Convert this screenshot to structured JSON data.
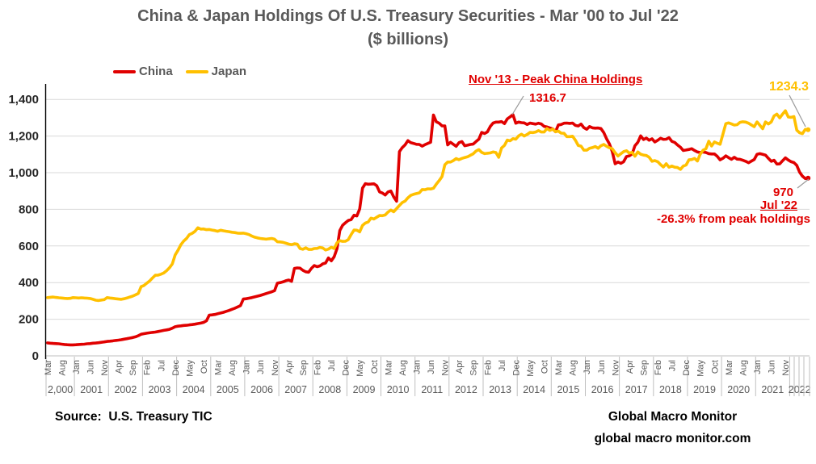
{
  "title": {
    "line1": "China & Japan Holdings Of U.S. Treasury Securities - Mar '00 to Jul '22",
    "line2": "($ billions)"
  },
  "legend": [
    {
      "label": "China",
      "color": "#E00000"
    },
    {
      "label": "Japan",
      "color": "#FFC000"
    }
  ],
  "annotations": {
    "peak_label": "Nov '13 - Peak China Holdings",
    "peak_value": "1316.7",
    "peak_color": "#E00000",
    "japan_end_value": "1234.3",
    "japan_color": "#FFC000",
    "china_end_value": "970",
    "china_end_date": "Jul '22",
    "china_drawdown": "-26.3% from peak holdings",
    "china_color": "#E00000"
  },
  "footer": {
    "source": "Source:  U.S. Treasury TIC",
    "brand_line1": "Global Macro Monitor",
    "brand_line2": "global macro monitor.com"
  },
  "colors": {
    "china_line": "#E00000",
    "japan_line": "#FFC000",
    "grid": "#D9D9D9",
    "baseline": "#BFBFBF",
    "axis": "#000000",
    "tick_text": "#595959",
    "y_text": "#262626",
    "leader": "#999999"
  },
  "chart_data": {
    "type": "line",
    "title": "China & Japan Holdings Of U.S. Treasury Securities - Mar '00 to Jul '22 ($ billions)",
    "x_start": "Mar 2000",
    "x_end": "Jul 2022",
    "grid": "horizontal",
    "legend_position": "top-left",
    "ylim": [
      0,
      1400
    ],
    "y_ticks": {
      "values": [
        0,
        200,
        400,
        600,
        800,
        1000,
        1200,
        1400
      ],
      "labels": [
        "0",
        "200",
        "400",
        "600",
        "800",
        "1,000",
        "1,200",
        "1,400"
      ]
    },
    "x_month_ticks": {
      "interval_months": 5,
      "labels": [
        "Mar",
        "Aug",
        "Jan",
        "Jun",
        "Nov",
        "Apr",
        "Sep",
        "Feb",
        "Jul",
        "Dec",
        "May",
        "Oct",
        "Mar",
        "Aug",
        "Jan",
        "Jun",
        "Nov",
        "Apr",
        "Sep",
        "Feb",
        "Jul",
        "Dec",
        "May",
        "Oct",
        "Mar",
        "Aug",
        "Jan",
        "Jun",
        "Nov",
        "Apr",
        "Sep",
        "Feb",
        "Jul",
        "Dec",
        "May",
        "Oct",
        "Mar",
        "Aug",
        "Jan",
        "Jun",
        "Nov",
        "Apr",
        "Sep",
        "Feb",
        "Jul",
        "Dec",
        "May",
        "Oct",
        "Mar",
        "Aug",
        "Jan",
        "Jun",
        "Nov"
      ]
    },
    "x_year_labels": [
      {
        "label": "2,000",
        "from": 0,
        "to": 9
      },
      {
        "label": "2001",
        "from": 10,
        "to": 21
      },
      {
        "label": "2002",
        "from": 22,
        "to": 33
      },
      {
        "label": "2003",
        "from": 34,
        "to": 45
      },
      {
        "label": "2004",
        "from": 46,
        "to": 57
      },
      {
        "label": "2005",
        "from": 58,
        "to": 69
      },
      {
        "label": "2006",
        "from": 70,
        "to": 81
      },
      {
        "label": "2007",
        "from": 82,
        "to": 93
      },
      {
        "label": "2008",
        "from": 94,
        "to": 105
      },
      {
        "label": "2009",
        "from": 106,
        "to": 117
      },
      {
        "label": "2010",
        "from": 118,
        "to": 129
      },
      {
        "label": "2011",
        "from": 130,
        "to": 141
      },
      {
        "label": "2012",
        "from": 142,
        "to": 153
      },
      {
        "label": "2013",
        "from": 154,
        "to": 165
      },
      {
        "label": "2014",
        "from": 166,
        "to": 177
      },
      {
        "label": "2015",
        "from": 178,
        "to": 189
      },
      {
        "label": "2016",
        "from": 190,
        "to": 201
      },
      {
        "label": "2017",
        "from": 202,
        "to": 213
      },
      {
        "label": "2018",
        "from": 214,
        "to": 225
      },
      {
        "label": "2019",
        "from": 226,
        "to": 237
      },
      {
        "label": "2020",
        "from": 238,
        "to": 249
      },
      {
        "label": "2021",
        "from": 250,
        "to": 261
      },
      {
        "label": "2022",
        "from": 262,
        "to": 268
      }
    ],
    "series": [
      {
        "name": "China",
        "color": "#E00000",
        "values": [
          71,
          69,
          68,
          67,
          66,
          64,
          62,
          61,
          60,
          60,
          61,
          62,
          63,
          64,
          66,
          67,
          69,
          70,
          72,
          74,
          76,
          79,
          80,
          82,
          84,
          86,
          88,
          91,
          94,
          97,
          100,
          104,
          110,
          118,
          121,
          124,
          126,
          128,
          130,
          133,
          136,
          139,
          142,
          145,
          151,
          159,
          162,
          164,
          166,
          167,
          169,
          171,
          173,
          176,
          179,
          183,
          191,
          222,
          224,
          226,
          230,
          234,
          238,
          243,
          248,
          254,
          260,
          267,
          274,
          310,
          312,
          315,
          318,
          322,
          326,
          330,
          335,
          340,
          345,
          350,
          356,
          397,
          400,
          404,
          410,
          414,
          407,
          477,
          480,
          479,
          467,
          459,
          457,
          478,
          493,
          487,
          491,
          502,
          507,
          535,
          519,
          541,
          585,
          684,
          713,
          727,
          739,
          744,
          768,
          764,
          802,
          916,
          940,
          937,
          938,
          939,
          929,
          895,
          889,
          878,
          895,
          900,
          868,
          844,
          1115,
          1137,
          1152,
          1175,
          1164,
          1160,
          1155,
          1154,
          1145,
          1153,
          1160,
          1166,
          1315,
          1278,
          1270,
          1256,
          1255,
          1152,
          1166,
          1155,
          1144,
          1164,
          1170,
          1147,
          1150,
          1154,
          1156,
          1170,
          1183,
          1220,
          1214,
          1223,
          1252,
          1271,
          1276,
          1276,
          1279,
          1268,
          1294,
          1305,
          1316.7,
          1270,
          1276,
          1273,
          1272,
          1263,
          1271,
          1268,
          1265,
          1270,
          1266,
          1253,
          1250,
          1244,
          1239,
          1224,
          1261,
          1263,
          1270,
          1271,
          1269,
          1271,
          1258,
          1255,
          1265,
          1246,
          1237,
          1252,
          1245,
          1243,
          1244,
          1241,
          1219,
          1185,
          1157,
          1116,
          1049,
          1058,
          1051,
          1060,
          1088,
          1092,
          1102,
          1147,
          1166,
          1201,
          1181,
          1189,
          1177,
          1185,
          1168,
          1177,
          1188,
          1182,
          1183,
          1191,
          1171,
          1165,
          1151,
          1139,
          1121,
          1124,
          1127,
          1131,
          1121,
          1113,
          1110,
          1113,
          1110,
          1104,
          1102,
          1102,
          1089,
          1070,
          1079,
          1092,
          1082,
          1073,
          1084,
          1074,
          1073,
          1068,
          1062,
          1054,
          1063,
          1072,
          1100,
          1104,
          1100,
          1096,
          1078,
          1062,
          1068,
          1047,
          1048,
          1065,
          1081,
          1069,
          1060,
          1055,
          1040,
          1003,
          981,
          968,
          970
        ]
      },
      {
        "name": "Japan",
        "color": "#FFC000",
        "values": [
          318,
          320,
          321,
          319,
          317,
          316,
          314,
          313,
          314,
          318,
          317,
          316,
          317,
          316,
          315,
          313,
          309,
          304,
          302,
          305,
          307,
          318,
          316,
          314,
          312,
          310,
          309,
          312,
          316,
          321,
          326,
          333,
          341,
          378,
          384,
          397,
          409,
          425,
          440,
          441,
          446,
          453,
          465,
          481,
          502,
          551,
          577,
          607,
          627,
          641,
          662,
          669,
          680,
          699,
          692,
          693,
          689,
          690,
          687,
          684,
          680,
          686,
          683,
          680,
          678,
          675,
          673,
          670,
          669,
          670,
          667,
          662,
          654,
          648,
          644,
          641,
          639,
          637,
          639,
          641,
          637,
          623,
          622,
          620,
          615,
          610,
          607,
          612,
          610,
          586,
          582,
          590,
          581,
          581,
          586,
          587,
          592,
          589,
          578,
          583,
          593,
          586,
          617,
          629,
          625,
          626,
          635,
          662,
          687,
          686,
          677,
          712,
          725,
          731,
          752,
          747,
          757,
          766,
          765,
          769,
          785,
          796,
          787,
          804,
          821,
          837,
          845,
          863,
          876,
          882,
          886,
          890,
          908,
          907,
          912,
          911,
          915,
          937,
          957,
          979,
          1043,
          1058,
          1058,
          1066,
          1077,
          1071,
          1078,
          1083,
          1087,
          1095,
          1103,
          1118,
          1126,
          1111,
          1104,
          1106,
          1108,
          1113,
          1110,
          1084,
          1135,
          1149,
          1178,
          1174,
          1186,
          1183,
          1201,
          1210,
          1200,
          1209,
          1220,
          1219,
          1222,
          1230,
          1222,
          1222,
          1241,
          1231,
          1238,
          1224,
          1227,
          1216,
          1215,
          1197,
          1197,
          1199,
          1177,
          1149,
          1145,
          1123,
          1123,
          1133,
          1137,
          1143,
          1133,
          1147,
          1154,
          1144,
          1136,
          1131,
          1109,
          1091,
          1103,
          1115,
          1120,
          1107,
          1111,
          1090,
          1113,
          1101,
          1096,
          1094,
          1084,
          1062,
          1066,
          1060,
          1044,
          1031,
          1049,
          1030,
          1036,
          1030,
          1028,
          1018,
          1036,
          1042,
          1070,
          1072,
          1078,
          1064,
          1101,
          1123,
          1131,
          1172,
          1146,
          1168,
          1161,
          1155,
          1212,
          1268,
          1272,
          1266,
          1260,
          1262,
          1275,
          1278,
          1276,
          1270,
          1261,
          1251,
          1277,
          1259,
          1240,
          1277,
          1266,
          1277,
          1310,
          1320,
          1299,
          1320,
          1338,
          1304,
          1302,
          1306,
          1232,
          1218,
          1213,
          1236,
          1234.3
        ]
      }
    ]
  }
}
